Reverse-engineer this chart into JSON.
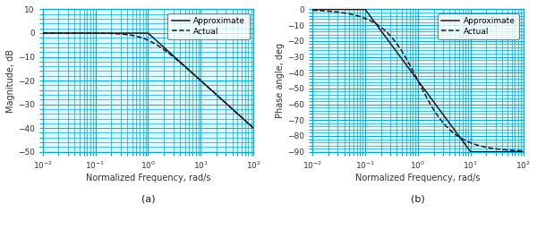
{
  "fig_width": 6.0,
  "fig_height": 2.56,
  "dpi": 100,
  "background_color": "#ffffff",
  "axes_bg_color": "#e0f8ff",
  "grid_major_color": "#00aadd",
  "grid_minor_color": "#00aadd",
  "spine_color": "#00aadd",
  "tick_color": "#333333",
  "line_color": "#1a1a1a",
  "freq_min": 0.01,
  "freq_max": 100,
  "mag_ylim": [
    -50,
    10
  ],
  "mag_yticks": [
    -50,
    -40,
    -30,
    -20,
    -10,
    0,
    10
  ],
  "phase_ylim": [
    -90,
    0
  ],
  "phase_yticks": [
    -90,
    -80,
    -70,
    -60,
    -50,
    -40,
    -30,
    -20,
    -10,
    0
  ],
  "xlabel": "Normalized Frequency, rad/s",
  "ylabel_mag": "Magnitude, dB",
  "ylabel_phase": "Phase angle, deg",
  "label_approx": "Approximate",
  "label_actual": "Actual",
  "label_a": "(a)",
  "label_b": "(b)"
}
